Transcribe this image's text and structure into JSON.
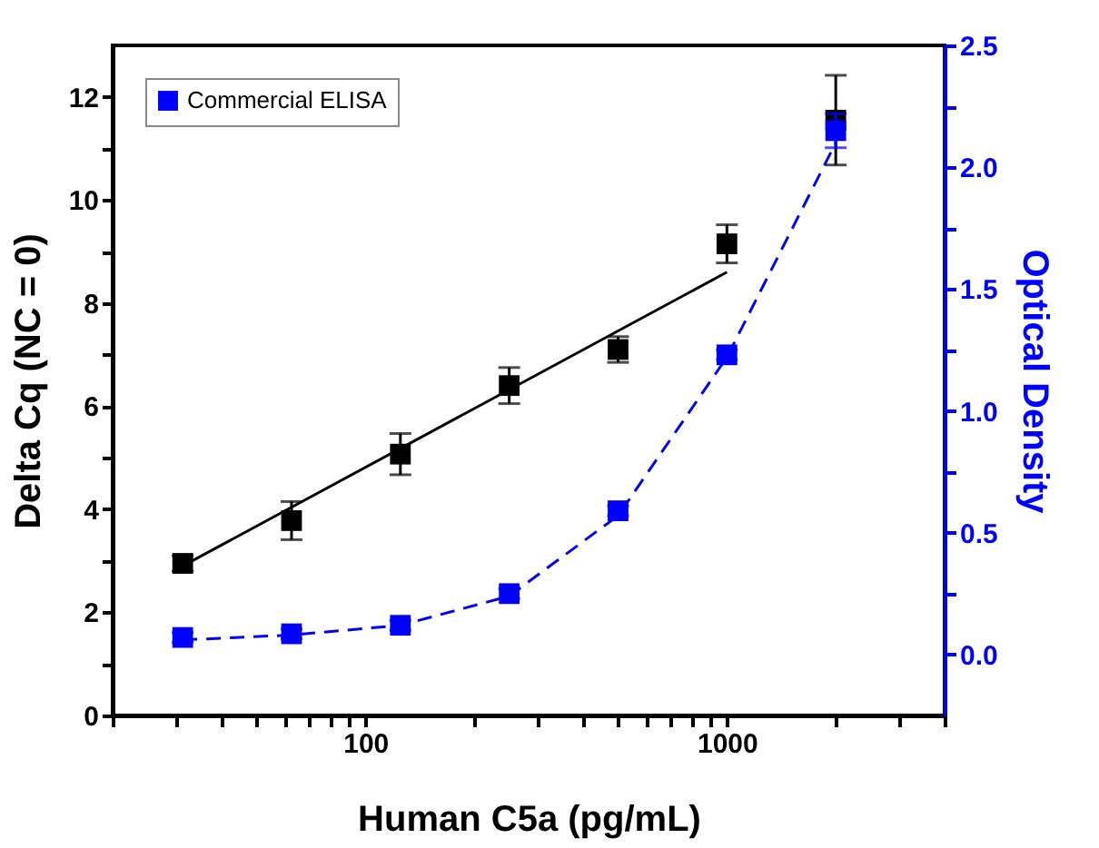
{
  "chart_data": {
    "type": "scatter",
    "xlabel": "Human C5a (pg/mL)",
    "ylabel": "Delta Cq (NC = 0)",
    "y2label": "Optical Density",
    "log": "x",
    "grid": false,
    "legend": "top left",
    "marker": "square",
    "x": [
      31.25,
      62.5,
      125,
      250,
      500,
      1000,
      2000
    ],
    "xlim": [
      20,
      4000
    ],
    "xticks": [
      {
        "value": 20,
        "label": null
      },
      {
        "value": 30,
        "label": null
      },
      {
        "value": 40,
        "label": null
      },
      {
        "value": 50,
        "label": null
      },
      {
        "value": 60,
        "label": null
      },
      {
        "value": 70,
        "label": null
      },
      {
        "value": 80,
        "label": null
      },
      {
        "value": 90,
        "label": null
      },
      100,
      {
        "value": 200,
        "label": null
      },
      {
        "value": 300,
        "label": null
      },
      {
        "value": 400,
        "label": null
      },
      {
        "value": 500,
        "label": null
      },
      {
        "value": 600,
        "label": null
      },
      {
        "value": 700,
        "label": null
      },
      {
        "value": 800,
        "label": null
      },
      {
        "value": 900,
        "label": null
      },
      1000,
      {
        "value": 2000,
        "label": null
      },
      {
        "value": 3000,
        "label": null
      },
      {
        "value": 4000,
        "label": null
      }
    ],
    "ylim": [
      0,
      13
    ],
    "yticks": [
      0,
      {
        "value": 1,
        "label": null
      },
      2,
      {
        "value": 3,
        "label": null
      },
      4,
      {
        "value": 5,
        "label": null
      },
      6,
      {
        "value": 7,
        "label": null
      },
      8,
      {
        "value": 9,
        "label": null
      },
      10,
      {
        "value": 11,
        "label": null
      },
      12
    ],
    "y2lim": [
      -0.25,
      2.5
    ],
    "y2ticks": [
      {
        "value": 0,
        "label": "0.0"
      },
      {
        "value": 0.25,
        "label": null
      },
      {
        "value": 0.5,
        "label": "0.5"
      },
      {
        "value": 0.75,
        "label": null
      },
      {
        "value": 1,
        "label": "1.0"
      },
      {
        "value": 1.25,
        "label": null
      },
      {
        "value": 1.5,
        "label": "1.5"
      },
      {
        "value": 1.75,
        "label": null
      },
      {
        "value": 2,
        "label": "2.0"
      },
      {
        "value": 2.25,
        "label": null
      },
      {
        "value": 2.5,
        "label": "2.5"
      }
    ],
    "series": [
      {
        "color": "#000000",
        "values": [
          2.95,
          3.78,
          5.07,
          6.4,
          7.1,
          9.15,
          11.55
        ],
        "errors": [
          0.15,
          0.37,
          0.4,
          0.35,
          0.25,
          0.37,
          0.87
        ]
      },
      {
        "type": "line",
        "marker": "none",
        "color": "#000000",
        "line_style": "solid",
        "x": [
          31.25,
          1000
        ],
        "values": [
          2.9,
          8.6
        ]
      },
      {
        "name": "Commercial ELISA",
        "axis": "y2",
        "color": "#0000ff",
        "values": [
          0.07,
          0.085,
          0.12,
          0.25,
          0.59,
          1.23,
          2.15
        ],
        "errors": [
          0.02,
          0.02,
          0.02,
          0.02,
          0.02,
          0.02,
          0.07
        ]
      },
      {
        "type": "line",
        "marker": "none",
        "axis": "y2",
        "color": "#0000ff",
        "line_style": "dashed",
        "x": [
          31.25,
          62.5,
          125,
          250,
          500,
          1000,
          2000
        ],
        "values": [
          0.06,
          0.08,
          0.12,
          0.24,
          0.57,
          1.22,
          2.1
        ]
      }
    ]
  }
}
